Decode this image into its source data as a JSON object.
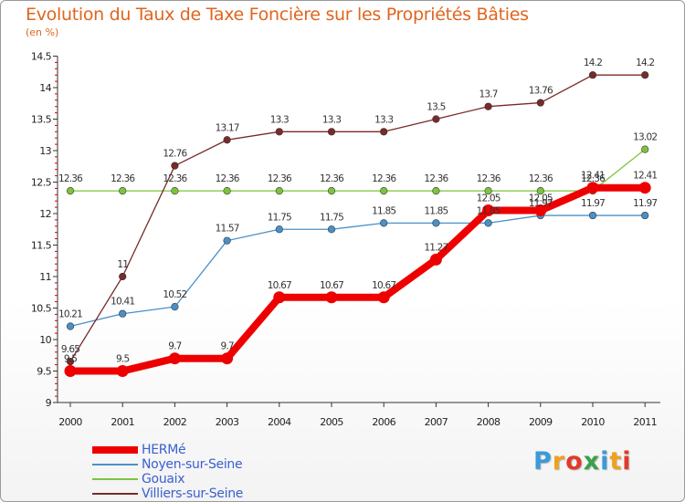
{
  "chart_data": {
    "type": "line",
    "title": "Evolution du Taux de Taxe Foncière sur les Propriétés Bâties",
    "subtitle": "(en %)",
    "xlabel": "",
    "ylabel": "",
    "categories": [
      "2000",
      "2001",
      "2002",
      "2003",
      "2004",
      "2005",
      "2006",
      "2007",
      "2008",
      "2009",
      "2010",
      "2011"
    ],
    "ylim": [
      9,
      14.5
    ],
    "yticks": [
      "9",
      "9.5",
      "10",
      "10.5",
      "11",
      "11.5",
      "12",
      "12.5",
      "13",
      "13.5",
      "14",
      "14.5"
    ],
    "grid": false,
    "legend_position": "bottom-left",
    "series": [
      {
        "name": "HERMé",
        "color": "#ee0000",
        "values": [
          9.5,
          9.5,
          9.7,
          9.7,
          10.67,
          10.67,
          10.67,
          11.27,
          12.05,
          12.05,
          12.41,
          12.41
        ],
        "labels": [
          "9.5",
          "9.5",
          "9.7",
          "9.7",
          "10.67",
          "10.67",
          "10.67",
          "11.27",
          "12.05",
          "12.05",
          "12.41",
          "12.41"
        ]
      },
      {
        "name": "Noyen-sur-Seine",
        "color": "#4a90c8",
        "values": [
          10.21,
          10.41,
          10.52,
          11.57,
          11.75,
          11.75,
          11.85,
          11.85,
          11.85,
          11.97,
          11.97,
          11.97
        ],
        "labels": [
          "10.21",
          "10.41",
          "10.52",
          "11.57",
          "11.75",
          "11.75",
          "11.85",
          "11.85",
          "11.85",
          "11.97",
          "11.97",
          "11.97"
        ]
      },
      {
        "name": "Gouaix",
        "color": "#7cc43c",
        "values": [
          12.36,
          12.36,
          12.36,
          12.36,
          12.36,
          12.36,
          12.36,
          12.36,
          12.36,
          12.36,
          12.36,
          13.02
        ],
        "labels": [
          "12.36",
          "12.36",
          "12.36",
          "12.36",
          "12.36",
          "12.36",
          "12.36",
          "12.36",
          "12.36",
          "12.36",
          "12.36",
          "13.02"
        ]
      },
      {
        "name": "Villiers-sur-Seine",
        "color": "#7a2a2a",
        "values": [
          9.65,
          11,
          12.76,
          13.17,
          13.3,
          13.3,
          13.3,
          13.5,
          13.7,
          13.76,
          14.2,
          14.2
        ],
        "labels": [
          "9.65",
          "11",
          "12.76",
          "13.17",
          "13.3",
          "13.3",
          "13.3",
          "13.5",
          "13.7",
          "13.76",
          "14.2",
          "14.2"
        ]
      }
    ]
  },
  "logo": {
    "letters": [
      "P",
      "r",
      "o",
      "x",
      "i",
      "t",
      "i"
    ],
    "colors": [
      "#3a9ad9",
      "#f0a020",
      "#e03a2a",
      "#3aa04a",
      "#3a9ad9",
      "#f0a020",
      "#e03a2a"
    ]
  }
}
